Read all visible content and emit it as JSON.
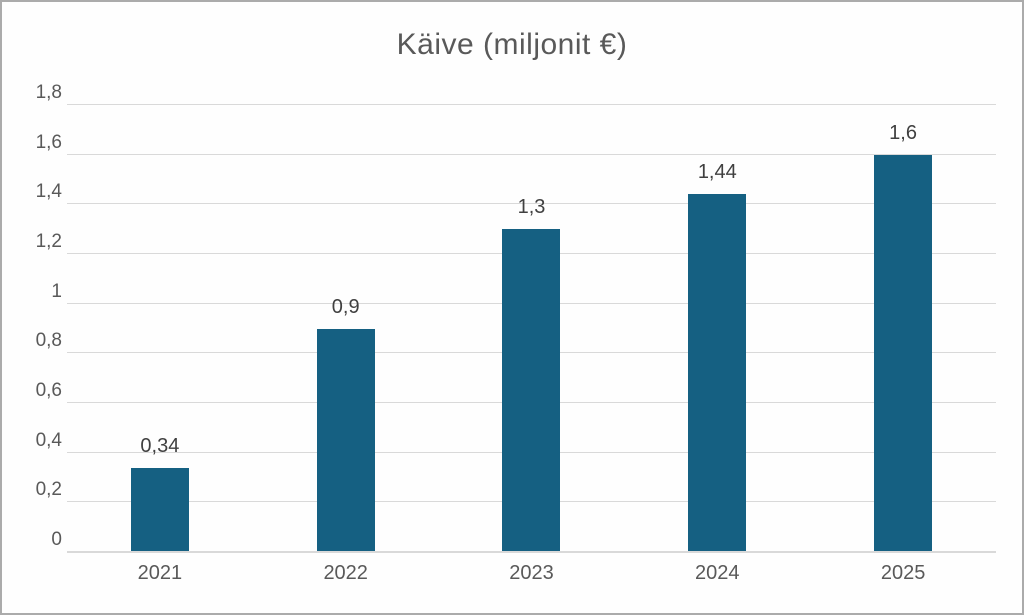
{
  "chart_data": {
    "type": "bar",
    "title": "Käive (miljonit €)",
    "xlabel": "",
    "ylabel": "",
    "categories": [
      "2021",
      "2022",
      "2023",
      "2024",
      "2025"
    ],
    "values": [
      0.34,
      0.9,
      1.3,
      1.44,
      1.6
    ],
    "value_labels": [
      "0,34",
      "0,9",
      "1,3",
      "1,44",
      "1,6"
    ],
    "y_tick_values": [
      0,
      0.2,
      0.4,
      0.6,
      0.8,
      1,
      1.2,
      1.4,
      1.6,
      1.8
    ],
    "y_tick_labels": [
      "0",
      "0,2",
      "0,4",
      "0,6",
      "0,8",
      "1",
      "1,2",
      "1,4",
      "1,6",
      "1,8"
    ],
    "ylim": [
      0,
      1.8
    ],
    "grid": true,
    "legend": false,
    "colors": {
      "bar": "#156082",
      "gridline": "#d9d9d9",
      "axis_line": "#d9d9d9",
      "title_text": "#595959",
      "tick_text": "#595959",
      "data_label_text": "#404040",
      "background": "#fefefe",
      "frame_border": "#ababab"
    }
  }
}
